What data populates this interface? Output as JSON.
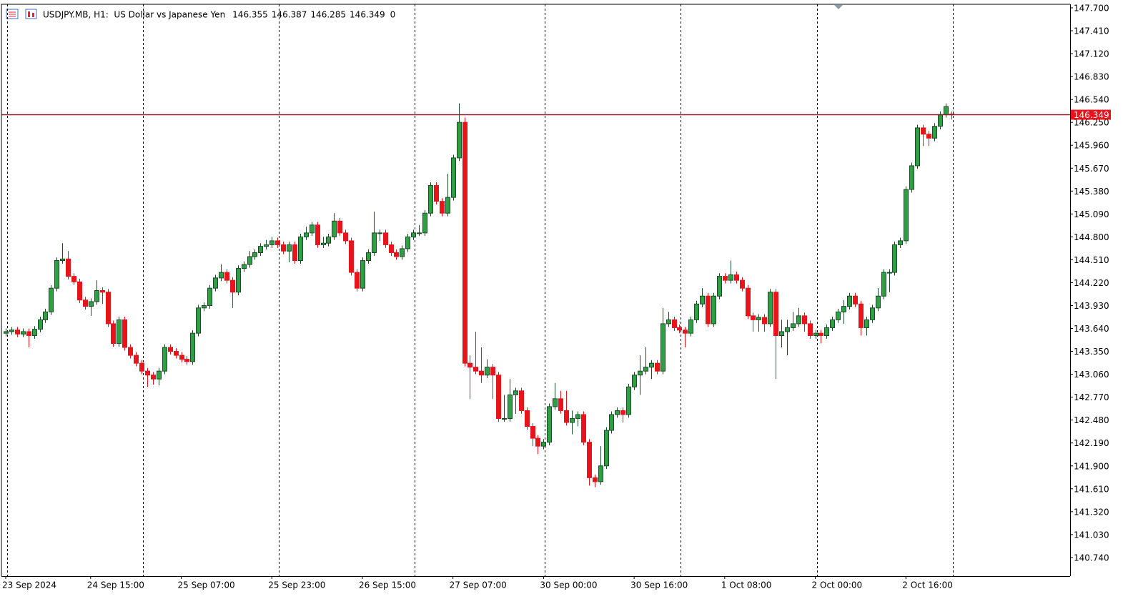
{
  "chart_data": {
    "type": "candlestick",
    "title": "USDJPY.MB, H1:  US Dollar vs Japanese Yen",
    "volume_last": 0,
    "up_color": "#2f9e44",
    "up_outline": "#1b4d26",
    "down_color": "#e8141c",
    "price_line_color": "#8b1a2a",
    "ylim": [
      140.504,
      147.745
    ],
    "yticks": [
      {
        "value": 147.7,
        "label": "147.700"
      },
      {
        "value": 147.41,
        "label": "147.410"
      },
      {
        "value": 147.12,
        "label": "147.120"
      },
      {
        "value": 146.83,
        "label": "146.830"
      },
      {
        "value": 146.54,
        "label": "146.540"
      },
      {
        "value": 146.25,
        "label": "146.250"
      },
      {
        "value": 145.96,
        "label": "145.960"
      },
      {
        "value": 145.67,
        "label": "145.670"
      },
      {
        "value": 145.38,
        "label": "145.380"
      },
      {
        "value": 145.09,
        "label": "145.090"
      },
      {
        "value": 144.8,
        "label": "144.800"
      },
      {
        "value": 144.51,
        "label": "144.510"
      },
      {
        "value": 144.22,
        "label": "144.220"
      },
      {
        "value": 143.93,
        "label": "143.930"
      },
      {
        "value": 143.64,
        "label": "143.640"
      },
      {
        "value": 143.35,
        "label": "143.350"
      },
      {
        "value": 143.06,
        "label": "143.060"
      },
      {
        "value": 142.77,
        "label": "142.770"
      },
      {
        "value": 142.48,
        "label": "142.480"
      },
      {
        "value": 142.19,
        "label": "142.190"
      },
      {
        "value": 141.9,
        "label": "141.900"
      },
      {
        "value": 141.61,
        "label": "141.610"
      },
      {
        "value": 141.32,
        "label": "141.320"
      },
      {
        "value": 141.03,
        "label": "141.030"
      },
      {
        "value": 140.74,
        "label": "140.740"
      }
    ],
    "categories": [
      "23 Sep 2024",
      null,
      null,
      null,
      null,
      null,
      null,
      null,
      null,
      null,
      null,
      null,
      null,
      null,
      null,
      "24 Sep 15:00",
      null,
      null,
      null,
      null,
      null,
      null,
      null,
      null,
      null,
      null,
      null,
      null,
      null,
      null,
      null,
      "25 Sep 07:00",
      null,
      null,
      null,
      null,
      null,
      null,
      null,
      null,
      null,
      null,
      null,
      null,
      null,
      null,
      null,
      "25 Sep 23:00",
      null,
      null,
      null,
      null,
      null,
      null,
      null,
      null,
      null,
      null,
      null,
      null,
      null,
      null,
      null,
      "26 Sep 15:00",
      null,
      null,
      null,
      null,
      null,
      null,
      null,
      null,
      null,
      null,
      null,
      null,
      null,
      null,
      null,
      "27 Sep 07:00",
      null,
      null,
      null,
      null,
      null,
      null,
      null,
      null,
      null,
      null,
      null,
      null,
      null,
      null,
      null,
      "30 Sep 00:00",
      null,
      null,
      null,
      null,
      null,
      null,
      null,
      null,
      null,
      null,
      null,
      null,
      null,
      null,
      null,
      "30 Sep 16:00",
      null,
      null,
      null,
      null,
      null,
      null,
      null,
      null,
      null,
      null,
      null,
      null,
      null,
      null,
      null,
      "1 Oct 08:00",
      null,
      null,
      null,
      null,
      null,
      null,
      null,
      null,
      null,
      null,
      null,
      null,
      null,
      null,
      null,
      "2 Oct 00:00",
      null,
      null,
      null,
      null,
      null,
      null,
      null,
      null,
      null,
      null,
      null,
      null,
      null,
      null,
      null,
      "2 Oct 16:00",
      null,
      null,
      null,
      null,
      null,
      null,
      null,
      null
    ],
    "open": [
      143.58,
      143.6,
      143.62,
      143.57,
      143.6,
      143.55,
      143.63,
      143.75,
      143.85,
      144.15,
      144.5,
      144.52,
      144.3,
      144.23,
      144.0,
      143.92,
      143.98,
      144.12,
      144.1,
      143.7,
      143.45,
      143.75,
      143.4,
      143.3,
      143.2,
      143.1,
      143.05,
      143.0,
      143.1,
      143.4,
      143.35,
      143.3,
      143.25,
      143.22,
      143.58,
      143.9,
      143.93,
      144.15,
      144.28,
      144.35,
      144.25,
      144.1,
      144.4,
      144.45,
      144.55,
      144.6,
      144.68,
      144.7,
      144.75,
      144.7,
      144.62,
      144.7,
      144.5,
      144.8,
      144.85,
      144.95,
      144.7,
      144.72,
      144.8,
      145.0,
      144.85,
      144.75,
      144.35,
      144.15,
      144.5,
      144.6,
      144.85,
      144.85,
      144.7,
      144.6,
      144.55,
      144.65,
      144.8,
      144.85,
      144.85,
      145.1,
      145.45,
      145.25,
      145.1,
      145.3,
      145.8,
      146.25,
      143.2,
      143.15,
      143.1,
      143.05,
      143.15,
      143.05,
      142.5,
      142.5,
      142.8,
      142.85,
      142.6,
      142.4,
      142.25,
      142.15,
      142.2,
      142.65,
      142.75,
      142.6,
      142.45,
      142.5,
      142.55,
      142.2,
      141.75,
      141.7,
      141.9,
      142.35,
      142.55,
      142.6,
      142.55,
      142.9,
      143.05,
      143.1,
      143.15,
      143.2,
      143.1,
      143.7,
      143.75,
      143.65,
      143.62,
      143.58,
      143.75,
      143.95,
      144.05,
      143.7,
      144.05,
      144.3,
      144.25,
      144.32,
      144.25,
      144.15,
      143.8,
      143.75,
      143.78,
      143.7,
      144.1,
      143.55,
      143.6,
      143.65,
      143.7,
      143.8,
      143.7,
      143.55,
      143.58,
      143.55,
      143.65,
      143.75,
      143.85,
      143.92,
      144.05,
      143.95,
      143.65,
      143.75,
      143.9,
      144.05,
      144.35,
      144.35,
      144.7,
      144.75,
      145.4,
      145.7,
      146.18,
      146.1,
      146.05,
      146.2,
      146.35,
      146.355
    ],
    "high": [
      143.64,
      143.66,
      143.66,
      143.64,
      143.64,
      143.67,
      143.79,
      143.89,
      144.19,
      144.54,
      144.72,
      144.62,
      144.34,
      144.27,
      144.04,
      144.02,
      144.25,
      144.16,
      144.14,
      143.74,
      143.79,
      143.79,
      143.44,
      143.34,
      143.24,
      143.14,
      143.09,
      143.14,
      143.44,
      143.44,
      143.39,
      143.34,
      143.29,
      143.62,
      143.94,
      143.97,
      144.19,
      144.32,
      144.45,
      144.39,
      144.29,
      144.44,
      144.49,
      144.62,
      144.64,
      144.72,
      144.76,
      144.8,
      144.79,
      144.74,
      144.74,
      144.74,
      144.84,
      144.93,
      144.99,
      144.99,
      144.8,
      144.84,
      145.1,
      145.04,
      144.89,
      144.79,
      144.39,
      144.54,
      144.64,
      145.12,
      144.89,
      144.89,
      144.74,
      144.64,
      144.69,
      144.84,
      144.89,
      144.95,
      145.14,
      145.49,
      145.49,
      145.29,
      145.6,
      145.84,
      146.49,
      146.31,
      143.3,
      143.6,
      143.4,
      143.25,
      143.19,
      143.09,
      142.8,
      143.0,
      142.89,
      142.89,
      142.64,
      142.44,
      142.29,
      142.24,
      142.69,
      142.95,
      142.85,
      142.85,
      142.6,
      142.59,
      142.59,
      142.24,
      141.79,
      142.15,
      142.39,
      142.59,
      142.64,
      142.64,
      142.94,
      143.09,
      143.3,
      143.4,
      143.24,
      143.24,
      143.9,
      143.85,
      143.79,
      143.69,
      143.66,
      143.79,
      143.99,
      144.15,
      144.09,
      144.09,
      144.34,
      144.34,
      144.5,
      144.36,
      144.29,
      144.19,
      143.84,
      143.82,
      143.82,
      144.14,
      144.14,
      143.75,
      143.75,
      143.85,
      143.9,
      143.84,
      143.74,
      143.62,
      143.62,
      143.69,
      143.79,
      143.89,
      144.0,
      144.09,
      144.09,
      143.99,
      143.79,
      143.94,
      144.15,
      144.39,
      144.39,
      144.74,
      144.79,
      145.44,
      145.74,
      146.22,
      146.22,
      146.14,
      146.24,
      146.39,
      146.49,
      146.387
    ],
    "low": [
      143.54,
      143.56,
      143.53,
      143.53,
      143.4,
      143.51,
      143.59,
      143.71,
      143.81,
      144.11,
      144.46,
      144.26,
      144.19,
      143.96,
      143.88,
      143.8,
      143.94,
      143.95,
      143.66,
      143.41,
      143.41,
      143.36,
      143.26,
      143.16,
      143.06,
      142.9,
      142.93,
      142.92,
      143.06,
      143.31,
      143.26,
      143.21,
      143.18,
      143.18,
      143.54,
      143.86,
      143.89,
      144.11,
      144.24,
      144.21,
      143.9,
      144.06,
      144.36,
      144.41,
      144.51,
      144.56,
      144.64,
      144.66,
      144.66,
      144.58,
      144.48,
      144.46,
      144.46,
      144.76,
      144.81,
      144.66,
      144.66,
      144.68,
      144.76,
      144.81,
      144.71,
      144.31,
      144.11,
      144.11,
      144.46,
      144.56,
      144.75,
      144.66,
      144.56,
      144.51,
      144.51,
      144.61,
      144.76,
      144.81,
      144.81,
      145.06,
      145.21,
      145.06,
      145.06,
      145.26,
      145.76,
      143.16,
      142.75,
      143.06,
      142.95,
      143.01,
      142.75,
      142.46,
      142.46,
      142.46,
      142.56,
      142.56,
      142.36,
      142.15,
      142.05,
      142.11,
      142.16,
      142.61,
      142.56,
      142.41,
      142.3,
      142.4,
      142.16,
      141.65,
      141.63,
      141.66,
      141.86,
      142.31,
      142.51,
      142.45,
      142.51,
      142.86,
      142.8,
      143.06,
      143.0,
      143.06,
      143.06,
      143.66,
      143.61,
      143.58,
      143.4,
      143.54,
      143.71,
      143.91,
      143.66,
      143.66,
      144.01,
      144.21,
      144.21,
      144.21,
      144.11,
      143.76,
      143.6,
      143.6,
      143.6,
      143.66,
      143.0,
      143.4,
      143.3,
      143.61,
      143.66,
      143.6,
      143.51,
      143.51,
      143.45,
      143.51,
      143.61,
      143.71,
      143.7,
      143.88,
      143.91,
      143.55,
      143.55,
      143.71,
      143.86,
      144.01,
      144.1,
      144.31,
      144.66,
      144.71,
      145.36,
      145.66,
      145.95,
      145.95,
      146.01,
      146.16,
      146.31,
      146.285
    ],
    "close": [
      143.6,
      143.62,
      143.57,
      143.6,
      143.55,
      143.63,
      143.75,
      143.85,
      144.15,
      144.5,
      144.52,
      144.3,
      144.23,
      144.0,
      143.92,
      143.98,
      144.12,
      144.1,
      143.7,
      143.45,
      143.75,
      143.4,
      143.3,
      143.2,
      143.1,
      143.05,
      143.0,
      143.1,
      143.4,
      143.35,
      143.3,
      143.25,
      143.22,
      143.58,
      143.9,
      143.93,
      144.15,
      144.28,
      144.35,
      144.25,
      144.1,
      144.4,
      144.45,
      144.55,
      144.6,
      144.68,
      144.7,
      144.75,
      144.7,
      144.62,
      144.7,
      144.5,
      144.8,
      144.85,
      144.95,
      144.7,
      144.72,
      144.8,
      145.0,
      144.85,
      144.75,
      144.35,
      144.15,
      144.5,
      144.6,
      144.85,
      144.85,
      144.7,
      144.6,
      144.55,
      144.65,
      144.8,
      144.85,
      144.85,
      145.1,
      145.45,
      145.25,
      145.1,
      145.3,
      145.8,
      146.25,
      143.2,
      143.15,
      143.1,
      143.05,
      143.15,
      143.05,
      142.5,
      142.5,
      142.8,
      142.85,
      142.6,
      142.4,
      142.25,
      142.15,
      142.2,
      142.65,
      142.75,
      142.6,
      142.45,
      142.5,
      142.55,
      142.2,
      141.75,
      141.7,
      141.9,
      142.35,
      142.55,
      142.6,
      142.55,
      142.9,
      143.05,
      143.1,
      143.15,
      143.2,
      143.1,
      143.7,
      143.75,
      143.65,
      143.62,
      143.58,
      143.75,
      143.95,
      144.05,
      143.7,
      144.05,
      144.3,
      144.25,
      144.32,
      144.25,
      144.15,
      143.8,
      143.75,
      143.78,
      143.7,
      144.1,
      143.55,
      143.6,
      143.65,
      143.7,
      143.8,
      143.7,
      143.55,
      143.58,
      143.55,
      143.65,
      143.75,
      143.85,
      143.92,
      144.05,
      143.95,
      143.65,
      143.75,
      143.9,
      144.05,
      144.35,
      144.35,
      144.7,
      144.75,
      145.4,
      145.7,
      146.18,
      146.1,
      146.05,
      146.2,
      146.35,
      146.45,
      146.349
    ]
  }
}
